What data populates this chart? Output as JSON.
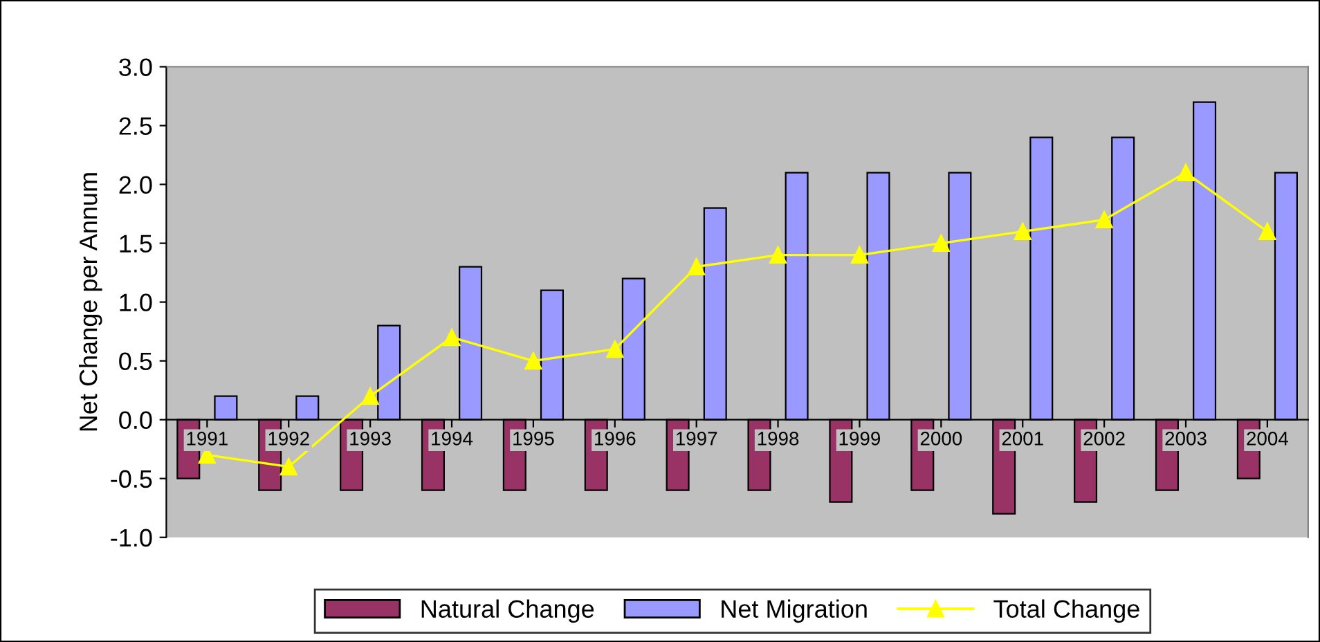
{
  "chart_data": {
    "type": "bar",
    "ylabel": "Net Change per Annum",
    "categories": [
      "1991",
      "1992",
      "1993",
      "1994",
      "1995",
      "1996",
      "1997",
      "1998",
      "1999",
      "2000",
      "2001",
      "2002",
      "2003",
      "2004"
    ],
    "series": [
      {
        "name": "Natural Change",
        "color": "#993366",
        "values": [
          -0.5,
          -0.6,
          -0.6,
          -0.6,
          -0.6,
          -0.6,
          -0.6,
          -0.6,
          -0.7,
          -0.6,
          -0.8,
          -0.7,
          -0.6,
          -0.5
        ]
      },
      {
        "name": "Net Migration",
        "color": "#9999ff",
        "values": [
          0.2,
          0.2,
          0.8,
          1.3,
          1.1,
          1.2,
          1.8,
          2.1,
          2.1,
          2.1,
          2.4,
          2.4,
          2.7,
          2.1
        ]
      },
      {
        "name": "Total Change",
        "type": "line",
        "color": "#ffff00",
        "marker": "triangle",
        "values": [
          -0.3,
          -0.4,
          0.2,
          0.7,
          0.5,
          0.6,
          1.3,
          1.4,
          1.4,
          1.5,
          1.6,
          1.7,
          2.1,
          1.6
        ]
      }
    ],
    "ylim": [
      -1.0,
      3.0
    ],
    "yticks": [
      {
        "value": -1.0,
        "label": "-1.0"
      },
      {
        "value": -0.5,
        "label": "-0.5"
      },
      {
        "value": 0.0,
        "label": "0.0"
      },
      {
        "value": 0.5,
        "label": "0.5"
      },
      {
        "value": 1.0,
        "label": "1.0"
      },
      {
        "value": 1.5,
        "label": "1.5"
      },
      {
        "value": 2.0,
        "label": "2.0"
      },
      {
        "value": 2.5,
        "label": "2.5"
      },
      {
        "value": 3.0,
        "label": "3.0"
      }
    ],
    "grid": false,
    "legend": "bottom"
  }
}
